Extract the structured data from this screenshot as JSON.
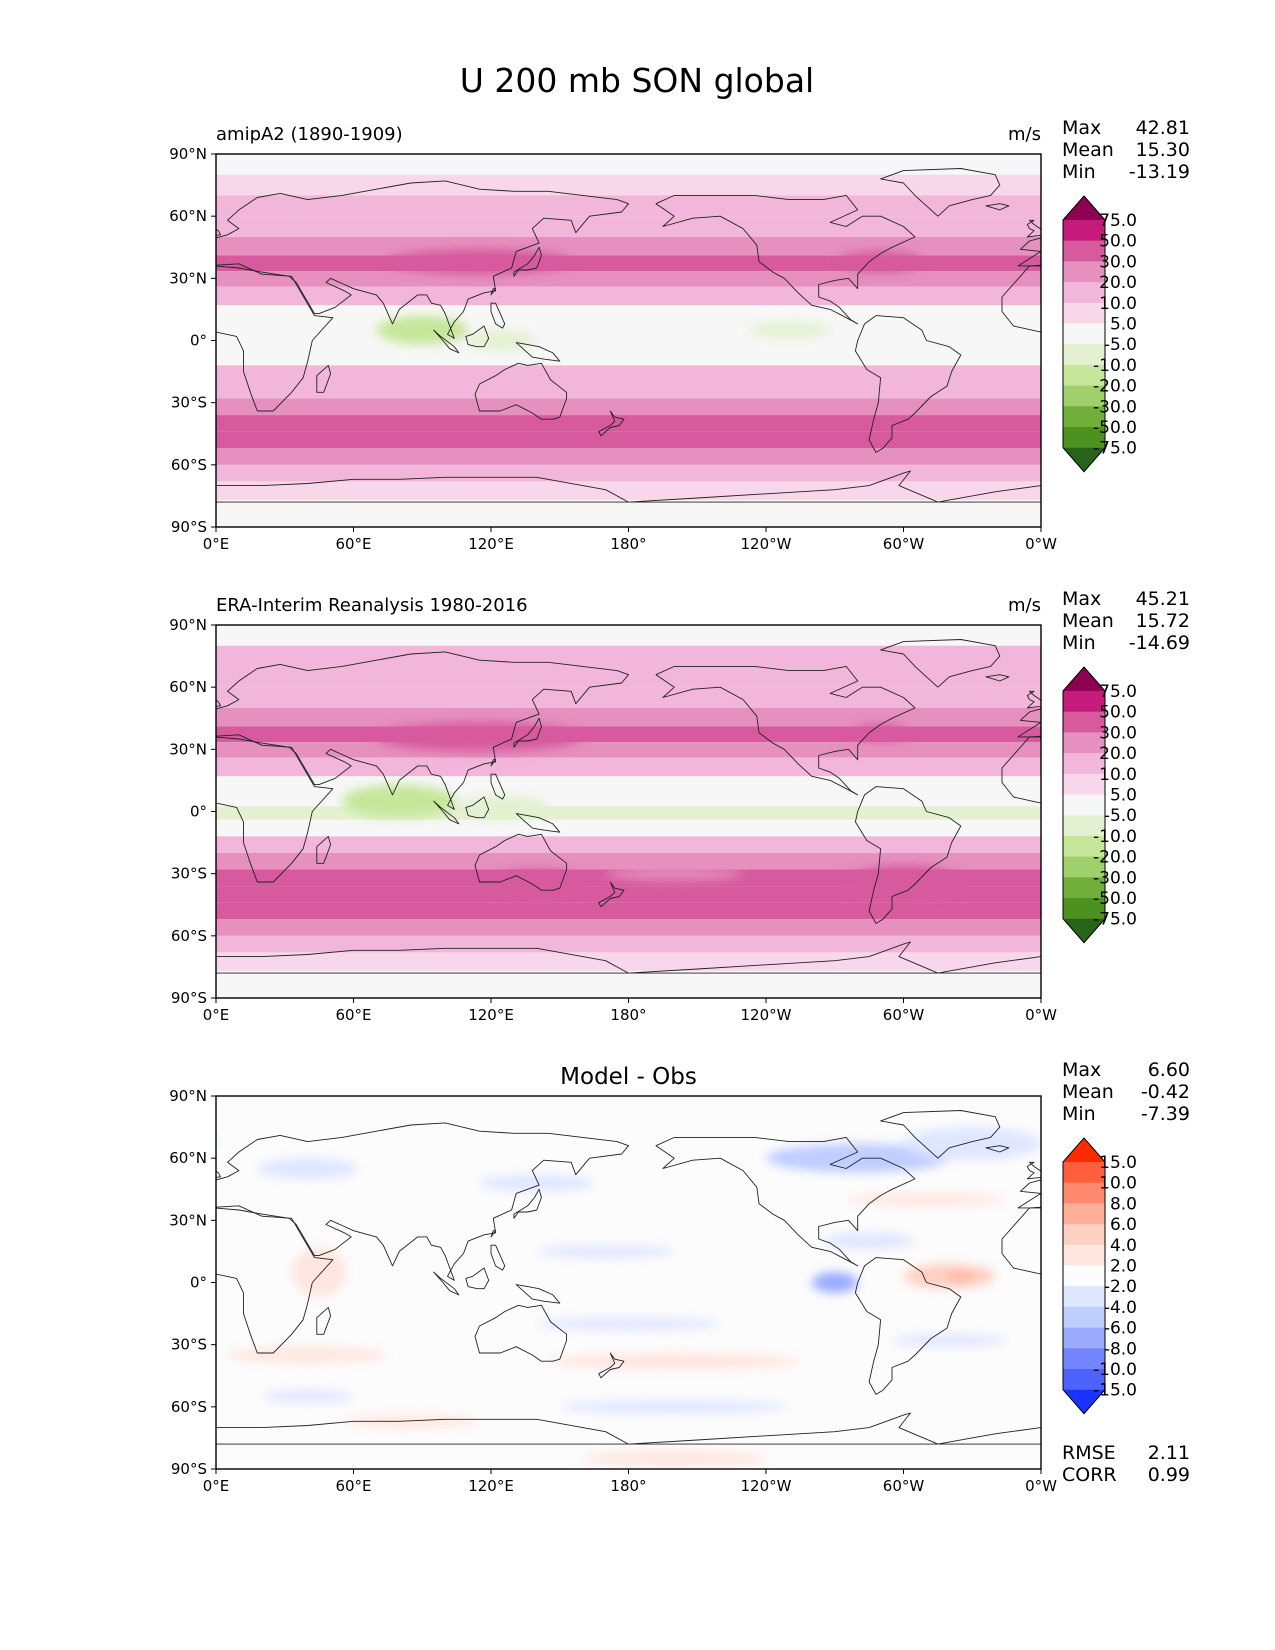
{
  "title": "U 200 mb SON global",
  "x_ticks": [
    "0°E",
    "60°E",
    "120°E",
    "180°",
    "120°W",
    "60°W",
    "0°W"
  ],
  "y_ticks": [
    "90°N",
    "60°N",
    "30°N",
    "0°",
    "30°S",
    "60°S",
    "90°S"
  ],
  "panels": [
    {
      "left_label": "amipA2 (1890-1909)",
      "center_label": "",
      "units": "m/s",
      "stats": [
        {
          "label": "Max",
          "value": "42.81"
        },
        {
          "label": "Mean",
          "value": "15.30"
        },
        {
          "label": "Min",
          "value": "-13.19"
        }
      ],
      "footer_stats": []
    },
    {
      "left_label": "ERA-Interim Reanalysis 1980-2016",
      "center_label": "",
      "units": "m/s",
      "stats": [
        {
          "label": "Max",
          "value": "45.21"
        },
        {
          "label": "Mean",
          "value": "15.72"
        },
        {
          "label": "Min",
          "value": "-14.69"
        }
      ],
      "footer_stats": []
    },
    {
      "left_label": "",
      "center_label": "Model - Obs",
      "units": "",
      "stats": [
        {
          "label": "Max",
          "value": "6.60"
        },
        {
          "label": "Mean",
          "value": "-0.42"
        },
        {
          "label": "Min",
          "value": "-7.39"
        }
      ],
      "footer_stats": [
        {
          "label": "RMSE",
          "value": "2.11"
        },
        {
          "label": "CORR",
          "value": "0.99"
        }
      ]
    }
  ],
  "chart_data": [
    {
      "type": "heatmap",
      "title": "amipA2 (1890-1909)",
      "variable": "U 200 mb SON global",
      "units": "m/s",
      "xlim": [
        0,
        360
      ],
      "ylim": [
        -90,
        90
      ],
      "colorbar": {
        "levels": [
          "75.0",
          "50.0",
          "30.0",
          "20.0",
          "10.0",
          "5.0",
          "-5.0",
          "-10.0",
          "-20.0",
          "-30.0",
          "-50.0",
          "-75.0"
        ],
        "colors": [
          "#8e0152",
          "#c51b7d",
          "#d65a9d",
          "#e590be",
          "#f1b6da",
          "#f8d7ea",
          "#f7f7f7",
          "#e4f1d1",
          "#c6e79a",
          "#a0d06b",
          "#6faf3a",
          "#4d9221",
          "#276419"
        ]
      },
      "bands": [
        {
          "lat": 85,
          "value": 4
        },
        {
          "lat": 75,
          "value": 8
        },
        {
          "lat": 65,
          "value": 12
        },
        {
          "lat": 55,
          "value": 16
        },
        {
          "lat": 45,
          "value": 23
        },
        {
          "lat": 37,
          "value": 32
        },
        {
          "lat": 30,
          "value": 28
        },
        {
          "lat": 22,
          "value": 16
        },
        {
          "lat": 12,
          "value": 4
        },
        {
          "lat": 5,
          "value": -2
        },
        {
          "lat": 0,
          "value": -5
        },
        {
          "lat": -8,
          "value": 2
        },
        {
          "lat": -16,
          "value": 10
        },
        {
          "lat": -24,
          "value": 18
        },
        {
          "lat": -32,
          "value": 28
        },
        {
          "lat": -40,
          "value": 34
        },
        {
          "lat": -48,
          "value": 32
        },
        {
          "lat": -56,
          "value": 24
        },
        {
          "lat": -64,
          "value": 16
        },
        {
          "lat": -72,
          "value": 8
        },
        {
          "lat": -82,
          "value": 4
        }
      ],
      "features": [
        {
          "lon": 115,
          "lat": 38,
          "lon_span": 40,
          "lat_span": 6,
          "value": 38
        },
        {
          "lon": 290,
          "lat": 38,
          "lon_span": 18,
          "lat_span": 5,
          "value": 34
        },
        {
          "lon": 90,
          "lat": 5,
          "lon_span": 20,
          "lat_span": 7,
          "value": -12
        },
        {
          "lon": 125,
          "lat": 0,
          "lon_span": 15,
          "lat_span": 5,
          "value": -10
        },
        {
          "lon": 250,
          "lat": 5,
          "lon_span": 18,
          "lat_span": 4,
          "value": -7
        }
      ]
    },
    {
      "type": "heatmap",
      "title": "ERA-Interim Reanalysis 1980-2016",
      "variable": "U 200 mb SON global",
      "units": "m/s",
      "xlim": [
        0,
        360
      ],
      "ylim": [
        -90,
        90
      ],
      "colorbar": {
        "levels": [
          "75.0",
          "50.0",
          "30.0",
          "20.0",
          "10.0",
          "5.0",
          "-5.0",
          "-10.0",
          "-20.0",
          "-30.0",
          "-50.0",
          "-75.0"
        ],
        "colors": [
          "#8e0152",
          "#c51b7d",
          "#d65a9d",
          "#e590be",
          "#f1b6da",
          "#f8d7ea",
          "#f7f7f7",
          "#e4f1d1",
          "#c6e79a",
          "#a0d06b",
          "#6faf3a",
          "#4d9221",
          "#276419"
        ]
      },
      "bands": [
        {
          "lat": 85,
          "value": 4
        },
        {
          "lat": 75,
          "value": 10
        },
        {
          "lat": 65,
          "value": 14
        },
        {
          "lat": 55,
          "value": 18
        },
        {
          "lat": 45,
          "value": 24
        },
        {
          "lat": 37,
          "value": 33
        },
        {
          "lat": 30,
          "value": 28
        },
        {
          "lat": 22,
          "value": 14
        },
        {
          "lat": 12,
          "value": 3
        },
        {
          "lat": 5,
          "value": -3
        },
        {
          "lat": 0,
          "value": -6
        },
        {
          "lat": -8,
          "value": 2
        },
        {
          "lat": -16,
          "value": 10
        },
        {
          "lat": -24,
          "value": 20
        },
        {
          "lat": -32,
          "value": 30
        },
        {
          "lat": -40,
          "value": 35
        },
        {
          "lat": -48,
          "value": 32
        },
        {
          "lat": -56,
          "value": 22
        },
        {
          "lat": -64,
          "value": 14
        },
        {
          "lat": -72,
          "value": 8
        },
        {
          "lat": -82,
          "value": 3
        }
      ],
      "features": [
        {
          "lon": 115,
          "lat": 36,
          "lon_span": 45,
          "lat_span": 7,
          "value": 40
        },
        {
          "lon": 290,
          "lat": 38,
          "lon_span": 12,
          "lat_span": 4,
          "value": 32
        },
        {
          "lon": 80,
          "lat": 5,
          "lon_span": 25,
          "lat_span": 8,
          "value": -12
        },
        {
          "lon": 125,
          "lat": 2,
          "lon_span": 20,
          "lat_span": 6,
          "value": -10
        },
        {
          "lon": 200,
          "lat": -30,
          "lon_span": 30,
          "lat_span": 3,
          "value": 26
        },
        {
          "lon": 140,
          "lat": -34,
          "lon_span": 20,
          "lat_span": 6,
          "value": 36
        },
        {
          "lon": 300,
          "lat": -34,
          "lon_span": 25,
          "lat_span": 8,
          "value": 36
        }
      ]
    },
    {
      "type": "heatmap",
      "title": "Model - Obs",
      "variable": "U 200 mb SON global",
      "units": "m/s",
      "xlim": [
        0,
        360
      ],
      "ylim": [
        -90,
        90
      ],
      "colorbar": {
        "levels": [
          "15.0",
          "10.0",
          "8.0",
          "6.0",
          "4.0",
          "2.0",
          "-2.0",
          "-4.0",
          "-6.0",
          "-8.0",
          "-10.0",
          "-15.0"
        ],
        "colors": [
          "#ff2a00",
          "#ff5f3d",
          "#ff8a6e",
          "#ffae98",
          "#ffcfc2",
          "#ffe6e0",
          "#fcfcfc",
          "#dfe6ff",
          "#bfcdff",
          "#9aabff",
          "#7486ff",
          "#4d62ff",
          "#1a33ff"
        ]
      },
      "bands": [],
      "features": [
        {
          "lon": 280,
          "lat": 60,
          "lon_span": 40,
          "lat_span": 7,
          "value": -4.5
        },
        {
          "lon": 330,
          "lat": 67,
          "lon_span": 30,
          "lat_span": 8,
          "value": -3
        },
        {
          "lon": 40,
          "lat": 55,
          "lon_span": 22,
          "lat_span": 5,
          "value": -3
        },
        {
          "lon": 140,
          "lat": 48,
          "lon_span": 25,
          "lat_span": 4,
          "value": -3
        },
        {
          "lon": 170,
          "lat": 15,
          "lon_span": 30,
          "lat_span": 3,
          "value": -3
        },
        {
          "lon": 285,
          "lat": 20,
          "lon_span": 20,
          "lat_span": 4,
          "value": -3
        },
        {
          "lon": 270,
          "lat": 0,
          "lon_span": 10,
          "lat_span": 5,
          "value": -7
        },
        {
          "lon": 180,
          "lat": -20,
          "lon_span": 40,
          "lat_span": 3,
          "value": -4
        },
        {
          "lon": 320,
          "lat": -28,
          "lon_span": 25,
          "lat_span": 3,
          "value": -3
        },
        {
          "lon": 40,
          "lat": -55,
          "lon_span": 20,
          "lat_span": 3,
          "value": -3
        },
        {
          "lon": 200,
          "lat": -60,
          "lon_span": 50,
          "lat_span": 3,
          "value": -3
        },
        {
          "lon": 310,
          "lat": 40,
          "lon_span": 35,
          "lat_span": 3,
          "value": 3
        },
        {
          "lon": 320,
          "lat": 3,
          "lon_span": 20,
          "lat_span": 6,
          "value": 4
        },
        {
          "lon": 325,
          "lat": 3,
          "lon_span": 6,
          "lat_span": 2,
          "value": 6.5
        },
        {
          "lon": 45,
          "lat": 5,
          "lon_span": 12,
          "lat_span": 12,
          "value": 3
        },
        {
          "lon": 40,
          "lat": -35,
          "lon_span": 35,
          "lat_span": 4,
          "value": 3
        },
        {
          "lon": 200,
          "lat": -38,
          "lon_span": 55,
          "lat_span": 4,
          "value": 3
        },
        {
          "lon": 85,
          "lat": -67,
          "lon_span": 30,
          "lat_span": 3,
          "value": 3
        },
        {
          "lon": 200,
          "lat": -85,
          "lon_span": 40,
          "lat_span": 4,
          "value": 3
        }
      ]
    }
  ]
}
